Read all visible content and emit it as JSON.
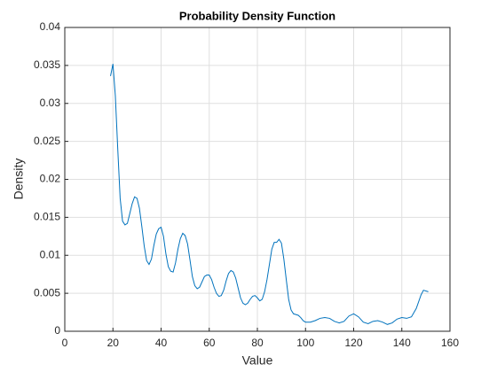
{
  "chart_data": {
    "type": "line",
    "title": "Probability Density Function",
    "x_label": "Value",
    "y_label": "Density",
    "series": [
      {
        "color": "#0072bd",
        "x": [
          19,
          20,
          21,
          22,
          23,
          24,
          25,
          26,
          27,
          28,
          29,
          30,
          31,
          32,
          33,
          34,
          35,
          36,
          37,
          38,
          39,
          40,
          41,
          42,
          43,
          44,
          45,
          46,
          47,
          48,
          49,
          50,
          51,
          52,
          53,
          54,
          55,
          56,
          57,
          58,
          59,
          60,
          61,
          62,
          63,
          64,
          65,
          66,
          67,
          68,
          69,
          70,
          71,
          72,
          73,
          74,
          75,
          76,
          77,
          78,
          79,
          80,
          81,
          82,
          83,
          84,
          85,
          86,
          87,
          88,
          89,
          90,
          91,
          92,
          93,
          94,
          95,
          96,
          97,
          98,
          99,
          100,
          102,
          104,
          106,
          108,
          110,
          112,
          114,
          116,
          118,
          120,
          122,
          124,
          126,
          128,
          130,
          132,
          134,
          136,
          138,
          140,
          142,
          144,
          146,
          148,
          149,
          151
        ],
        "values": [
          0.0336,
          0.0352,
          0.031,
          0.024,
          0.0175,
          0.0145,
          0.014,
          0.0142,
          0.0155,
          0.0168,
          0.0177,
          0.0175,
          0.0162,
          0.0138,
          0.0112,
          0.0093,
          0.0088,
          0.0095,
          0.0113,
          0.0128,
          0.0135,
          0.0137,
          0.0125,
          0.0102,
          0.0085,
          0.0079,
          0.0078,
          0.009,
          0.0108,
          0.0122,
          0.0129,
          0.0126,
          0.0115,
          0.0094,
          0.0072,
          0.006,
          0.0056,
          0.0058,
          0.0065,
          0.0072,
          0.0074,
          0.0074,
          0.0068,
          0.0058,
          0.005,
          0.0046,
          0.0047,
          0.0054,
          0.0066,
          0.0076,
          0.008,
          0.0078,
          0.007,
          0.0057,
          0.0044,
          0.0037,
          0.0035,
          0.0037,
          0.0042,
          0.0046,
          0.0047,
          0.0044,
          0.004,
          0.0042,
          0.0052,
          0.0068,
          0.0088,
          0.0108,
          0.0117,
          0.0117,
          0.0121,
          0.0116,
          0.0095,
          0.0068,
          0.0042,
          0.0028,
          0.0023,
          0.0022,
          0.0021,
          0.0018,
          0.0014,
          0.0012,
          0.0012,
          0.0014,
          0.0017,
          0.0018,
          0.0017,
          0.0013,
          0.0011,
          0.0013,
          0.002,
          0.0023,
          0.0019,
          0.0012,
          0.001,
          0.0013,
          0.0014,
          0.0012,
          0.0009,
          0.0011,
          0.0016,
          0.0018,
          0.0017,
          0.0019,
          0.003,
          0.0048,
          0.0054,
          0.0052
        ]
      }
    ],
    "xlim": [
      0,
      160
    ],
    "xticks": [
      0,
      20,
      40,
      60,
      80,
      100,
      120,
      140,
      160
    ],
    "ylim": [
      0,
      0.04
    ],
    "yticks": [
      0,
      0.005,
      0.01,
      0.015,
      0.02,
      0.025,
      0.03,
      0.035,
      0.04
    ],
    "grid": true
  }
}
